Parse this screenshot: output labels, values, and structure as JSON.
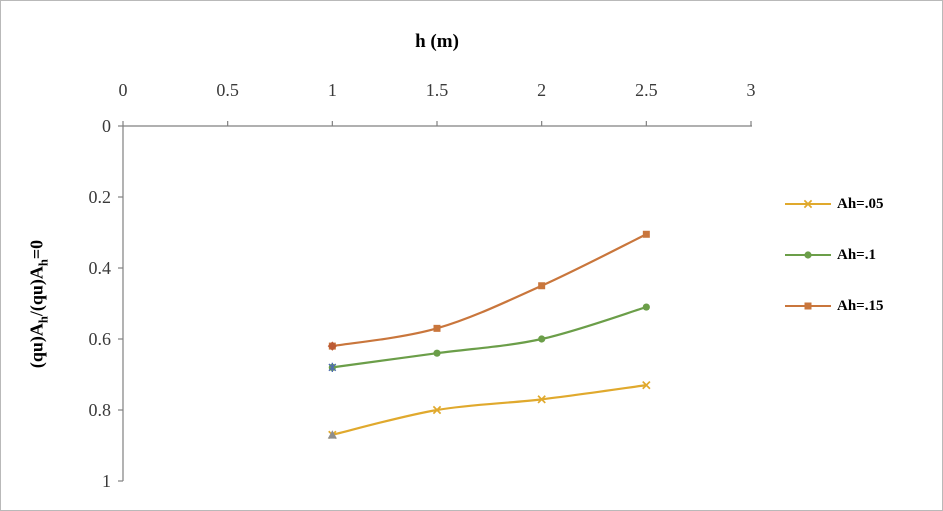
{
  "chart_data": {
    "type": "line",
    "title": "",
    "x_axis": {
      "label": "h (m)",
      "position": "top",
      "min": 0,
      "max": 3,
      "ticks": [
        0,
        0.5,
        1,
        1.5,
        2,
        2.5,
        3
      ],
      "tick_labels": [
        "0",
        "0.5",
        "1",
        "1.5",
        "2",
        "2.5",
        "3"
      ]
    },
    "y_axis": {
      "label": "(qu)Ah/(qu)Ah=0",
      "label_parts": [
        {
          "t": "(qu)A"
        },
        {
          "t": "h",
          "sub": true
        },
        {
          "t": "/(qu)A"
        },
        {
          "t": "h",
          "sub": true
        },
        {
          "t": "=0"
        }
      ],
      "direction": "reversed",
      "min": 0,
      "max": 1,
      "ticks": [
        0,
        0.2,
        0.4,
        0.6,
        0.8,
        1
      ],
      "tick_labels": [
        "0",
        "0.2",
        "0.4",
        "0.6",
        "0.8",
        "1"
      ]
    },
    "x": [
      1,
      1.5,
      2,
      2.5
    ],
    "series": [
      {
        "name": "Ah=.05",
        "color": "#E0A92D",
        "marker": "x",
        "values": [
          0.87,
          0.8,
          0.77,
          0.73
        ]
      },
      {
        "name": "Ah=.1",
        "color": "#6B9E49",
        "marker": "circle",
        "values": [
          0.68,
          0.64,
          0.6,
          0.51
        ]
      },
      {
        "name": "Ah=.15",
        "color": "#C9763C",
        "marker": "square",
        "values": [
          0.62,
          0.57,
          0.45,
          0.305
        ]
      }
    ],
    "extra_points": [
      {
        "marker": "triangle",
        "color": "#8E8E8E",
        "x": 1,
        "y": 0.87
      },
      {
        "marker": "asterisk",
        "color": "#4F6DAE",
        "x": 1,
        "y": 0.68
      },
      {
        "marker": "diamond",
        "color": "#BC5B35",
        "x": 1,
        "y": 0.62
      }
    ],
    "legend": {
      "position": "right"
    },
    "grid": false,
    "axis_color": "#808080",
    "tick_label_color": "#3a3a3a"
  }
}
